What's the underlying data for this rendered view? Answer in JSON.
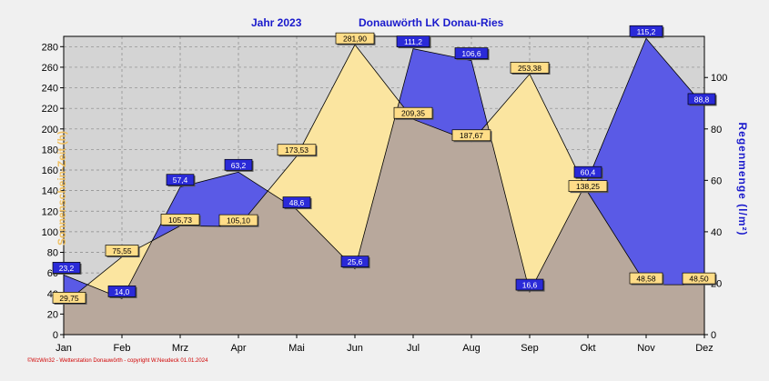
{
  "header": {
    "title_left": "Jahr  2023",
    "title_right": "Donauwörth LK Donau-Ries"
  },
  "footer": "©WzWin32 - Wetterstation Donauwörth - copyright W.Neudeck 01.01.2024",
  "colors": {
    "sunshine_fill": "#fbe5a0",
    "rain_fill": "#5a5ae6",
    "overlap_fill": "#b8a89c",
    "sunshine_label": "#ffdd88",
    "rain_label": "#2a2ad8",
    "background": "#f0f0f0",
    "plot_background": "#d4d4d4"
  },
  "chart_data": {
    "type": "area",
    "categories": [
      "Jan",
      "Feb",
      "Mrz",
      "Apr",
      "Mai",
      "Jun",
      "Jul",
      "Aug",
      "Sep",
      "Okt",
      "Nov",
      "Dez"
    ],
    "y_left": {
      "label": "Sonnenschein-Zeit  (h)",
      "ticks": [
        "0",
        "20",
        "40",
        "60",
        "80",
        "100",
        "120",
        "140",
        "160",
        "180",
        "200",
        "220",
        "240",
        "260",
        "280"
      ],
      "ylim": [
        0,
        290
      ]
    },
    "y_right": {
      "label": "Regenmenge  (l/m²)",
      "ticks": [
        "0",
        "20",
        "40",
        "60",
        "80",
        "100"
      ],
      "ylim": [
        0,
        116
      ]
    },
    "grid": true,
    "series": [
      {
        "name": "Sonnenschein-Zeit (h)",
        "axis": "left",
        "values": [
          29.75,
          75.55,
          105.73,
          105.1,
          173.53,
          281.9,
          209.35,
          187.67,
          253.38,
          138.25,
          48.58,
          48.5
        ],
        "labels": [
          "29,75",
          "75,55",
          "105,73",
          "105,10",
          "173,53",
          "281,90",
          "209,35",
          "187,67",
          "253,38",
          "138,25",
          "48,58",
          "48,50"
        ]
      },
      {
        "name": "Regenmenge (l/m²)",
        "axis": "right",
        "values": [
          23.2,
          14.0,
          57.4,
          63.2,
          48.6,
          25.6,
          111.2,
          106.6,
          16.6,
          60.4,
          115.2,
          88.8
        ],
        "labels": [
          "23,2",
          "14,0",
          "57,4",
          "63,2",
          "48,6",
          "25,6",
          "111,2",
          "106,6",
          "16,6",
          "60,4",
          "115,2",
          "88,8"
        ]
      }
    ]
  }
}
